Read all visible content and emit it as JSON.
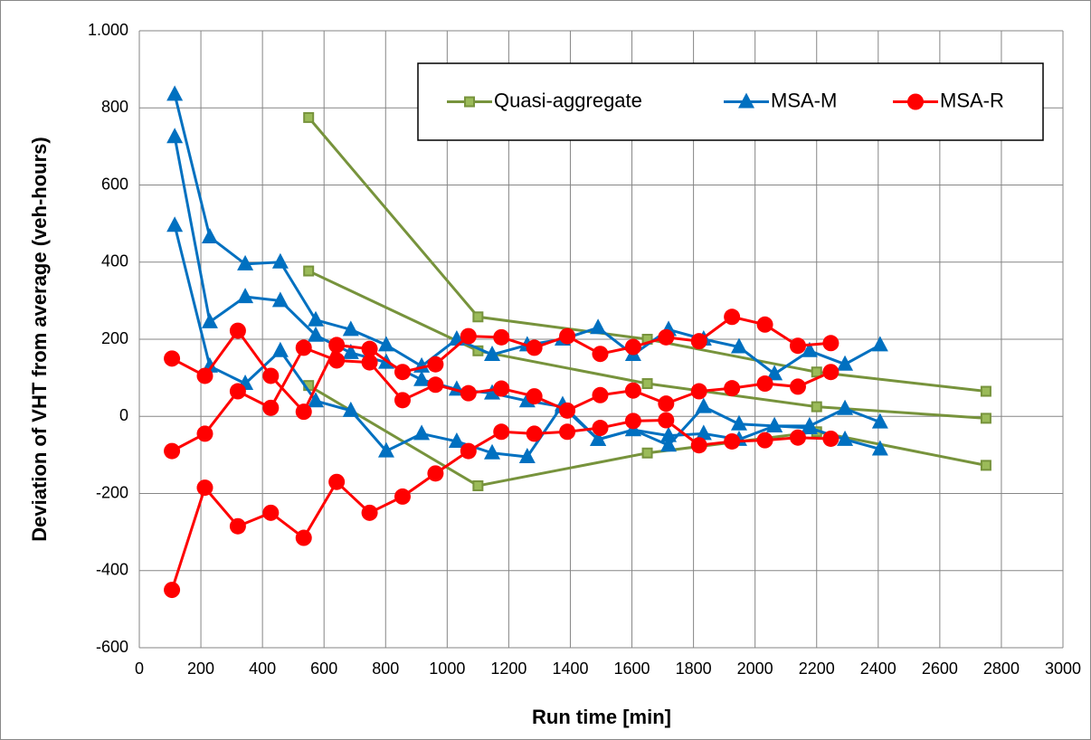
{
  "chart_data": {
    "type": "line",
    "xlabel": "Run time [min]",
    "ylabel": "Deviation of VHT from average (veh-hours)",
    "xlim": [
      0,
      3000
    ],
    "xticks": [
      0,
      200,
      400,
      600,
      800,
      1000,
      1200,
      1400,
      1600,
      1800,
      2000,
      2200,
      2400,
      2600,
      2800,
      3000
    ],
    "ylim": [
      -600,
      1000
    ],
    "yticks": [
      -600,
      -400,
      -200,
      0,
      200,
      400,
      600,
      800,
      {
        "value": 1000,
        "label": "1.000"
      }
    ],
    "grid": true,
    "legend": "top-right",
    "series": [
      {
        "name": "Quasi-aggregate",
        "color": "#77933c",
        "marker": "square",
        "x": [
          550,
          1100,
          1650,
          2200,
          2750,
          null,
          550,
          1100,
          1650,
          2200,
          2750,
          null,
          550,
          1100,
          1650,
          2200,
          2750
        ],
        "values": [
          775,
          258,
          200,
          115,
          65,
          null,
          377,
          170,
          85,
          25,
          -5,
          null,
          80,
          -180,
          -95,
          -40,
          -127
        ]
      },
      {
        "name": "MSA-M",
        "color": "#0070c0",
        "marker": "triangle",
        "x": [
          115,
          229,
          344,
          458,
          573,
          687,
          802,
          917,
          1031,
          1146,
          1260,
          1375,
          1490,
          1604,
          1719,
          1833,
          1948,
          2063,
          2177,
          2292,
          2406,
          null,
          115,
          229,
          344,
          458,
          573,
          687,
          802,
          917,
          1031,
          1146,
          1260,
          1375,
          1490,
          1604,
          1719,
          1833,
          1948,
          2063,
          2177,
          2292,
          2406,
          null,
          115,
          229,
          344,
          458,
          573,
          687,
          802,
          917,
          1031,
          1146,
          1260,
          1375,
          1490,
          1604,
          1719,
          1833,
          1948,
          2063,
          2177,
          2292,
          2406
        ],
        "values": [
          835,
          465,
          395,
          400,
          250,
          225,
          185,
          130,
          200,
          160,
          185,
          200,
          230,
          160,
          225,
          200,
          180,
          110,
          170,
          135,
          185,
          null,
          725,
          245,
          310,
          300,
          210,
          165,
          140,
          95,
          70,
          60,
          40,
          25,
          -60,
          -35,
          -75,
          25,
          -20,
          -25,
          -25,
          20,
          -15,
          null,
          495,
          130,
          85,
          170,
          40,
          15,
          -90,
          -45,
          -65,
          -95,
          -105,
          30,
          -60,
          -35,
          -50,
          -45,
          -60,
          -25,
          -30,
          -60,
          -85
        ]
      },
      {
        "name": "MSA-R",
        "color": "#ff0000",
        "marker": "circle",
        "x": [
          106,
          213,
          320,
          427,
          534,
          641,
          748,
          855,
          962,
          1069,
          1176,
          1283,
          1390,
          1497,
          1604,
          1711,
          1818,
          1925,
          2032,
          2139,
          2246,
          null,
          106,
          213,
          320,
          427,
          534,
          641,
          748,
          855,
          962,
          1069,
          1176,
          1283,
          1390,
          1497,
          1604,
          1711,
          1818,
          1925,
          2032,
          2139,
          2246,
          null,
          106,
          213,
          320,
          427,
          534,
          641,
          748,
          855,
          962,
          1069,
          1176,
          1283,
          1390,
          1497,
          1604,
          1711,
          1818,
          1925,
          2032,
          2139,
          2246
        ],
        "values": [
          150,
          105,
          222,
          105,
          12,
          185,
          175,
          115,
          135,
          208,
          205,
          178,
          208,
          162,
          180,
          205,
          195,
          258,
          238,
          183,
          190,
          null,
          -90,
          -45,
          65,
          22,
          178,
          145,
          140,
          42,
          82,
          60,
          72,
          52,
          15,
          55,
          67,
          33,
          65,
          73,
          85,
          77,
          115,
          null,
          -450,
          -185,
          -285,
          -250,
          -315,
          -170,
          -250,
          -208,
          -148,
          -90,
          -40,
          -45,
          -40,
          -30,
          -12,
          -10,
          -75,
          -65,
          -62,
          -55,
          -58
        ]
      }
    ]
  }
}
